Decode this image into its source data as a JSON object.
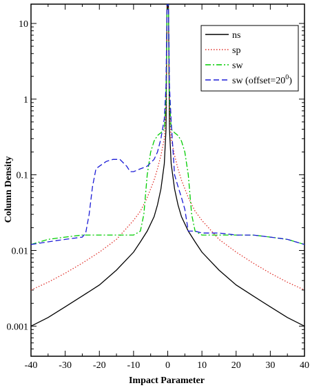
{
  "chart_data": {
    "type": "line",
    "title": "",
    "xlabel": "Impact Parameter",
    "ylabel": "Column Density",
    "xlim": [
      -40,
      40
    ],
    "ylim": [
      0.0004,
      18
    ],
    "yscale": "log",
    "grid": false,
    "legend_position": "top-right",
    "x_ticks": [
      -40,
      -30,
      -20,
      -10,
      0,
      10,
      20,
      30,
      40
    ],
    "x_tick_labels": [
      "-40",
      "-30",
      "-20",
      "-10",
      "0",
      "10",
      "20",
      "30",
      "40"
    ],
    "y_ticks": [
      0.001,
      0.01,
      0.1,
      1,
      10
    ],
    "y_tick_labels": [
      "0.001",
      "0.01",
      "0.1",
      "1",
      "10"
    ],
    "series": [
      {
        "name": "ns",
        "color": "#000000",
        "dash": "solid",
        "x": [
          -40,
          -35,
          -30,
          -25,
          -20,
          -15,
          -10,
          -8,
          -6,
          -4,
          -3,
          -2,
          -1,
          -0.5,
          -0.2,
          0.2,
          0.5,
          1,
          2,
          3,
          4,
          6,
          8,
          10,
          15,
          20,
          25,
          30,
          35,
          40
        ],
        "y": [
          0.001,
          0.0013,
          0.0018,
          0.0025,
          0.0035,
          0.0055,
          0.0095,
          0.013,
          0.018,
          0.028,
          0.04,
          0.065,
          0.14,
          0.4,
          18,
          18,
          0.4,
          0.14,
          0.065,
          0.04,
          0.028,
          0.018,
          0.013,
          0.0095,
          0.0055,
          0.0035,
          0.0025,
          0.0018,
          0.0013,
          0.001
        ]
      },
      {
        "name": "sp",
        "color": "#e0302a",
        "dash": "dotted",
        "x": [
          -40,
          -35,
          -30,
          -25,
          -20,
          -15,
          -10,
          -8,
          -6,
          -4,
          -3,
          -2,
          -1,
          -0.5,
          -0.2,
          0.2,
          0.5,
          1,
          2,
          3,
          4,
          6,
          8,
          10,
          15,
          20,
          25,
          30,
          35,
          40
        ],
        "y": [
          0.003,
          0.0038,
          0.005,
          0.0068,
          0.0095,
          0.014,
          0.025,
          0.033,
          0.05,
          0.085,
          0.12,
          0.18,
          0.3,
          0.8,
          18,
          18,
          0.8,
          0.3,
          0.18,
          0.12,
          0.085,
          0.05,
          0.033,
          0.025,
          0.014,
          0.0095,
          0.0068,
          0.005,
          0.0038,
          0.003
        ]
      },
      {
        "name": "sw",
        "color": "#00cc00",
        "dash": "dashdot",
        "x": [
          -40,
          -35,
          -30,
          -25,
          -20,
          -15,
          -10,
          -8,
          -7,
          -6,
          -5,
          -4,
          -3,
          -2,
          -1,
          -0.5,
          -0.2,
          0.2,
          0.5,
          1,
          2,
          3,
          4,
          5,
          6,
          7,
          8,
          10,
          15,
          20,
          25,
          30,
          35,
          40
        ],
        "y": [
          0.012,
          0.014,
          0.015,
          0.016,
          0.016,
          0.016,
          0.016,
          0.018,
          0.03,
          0.1,
          0.2,
          0.28,
          0.33,
          0.36,
          0.4,
          1,
          18,
          18,
          1,
          0.4,
          0.36,
          0.33,
          0.28,
          0.2,
          0.1,
          0.03,
          0.018,
          0.016,
          0.016,
          0.016,
          0.016,
          0.015,
          0.014,
          0.012
        ]
      },
      {
        "name": "sw (offset=20°)",
        "color": "#1a1ad6",
        "dash": "dashed",
        "x": [
          -40,
          -35,
          -30,
          -25,
          -24,
          -23,
          -22,
          -21,
          -20,
          -18,
          -16,
          -14,
          -12,
          -11,
          -10,
          -8,
          -6,
          -4,
          -3,
          -2,
          -1,
          -0.5,
          -0.2,
          0.2,
          0.5,
          1,
          2,
          3,
          4,
          5,
          6,
          8,
          10,
          15,
          20,
          25,
          30,
          35,
          40
        ],
        "y": [
          0.012,
          0.013,
          0.014,
          0.015,
          0.017,
          0.03,
          0.07,
          0.12,
          0.13,
          0.15,
          0.16,
          0.16,
          0.13,
          0.11,
          0.11,
          0.12,
          0.13,
          0.16,
          0.2,
          0.3,
          0.55,
          1.5,
          18,
          18,
          1.5,
          0.5,
          0.1,
          0.07,
          0.05,
          0.035,
          0.018,
          0.018,
          0.017,
          0.017,
          0.016,
          0.016,
          0.015,
          0.014,
          0.012
        ]
      }
    ],
    "legend": {
      "superscript_note": "0",
      "entries": [
        "ns",
        "sp",
        "sw",
        "sw (offset=20°)"
      ]
    }
  }
}
